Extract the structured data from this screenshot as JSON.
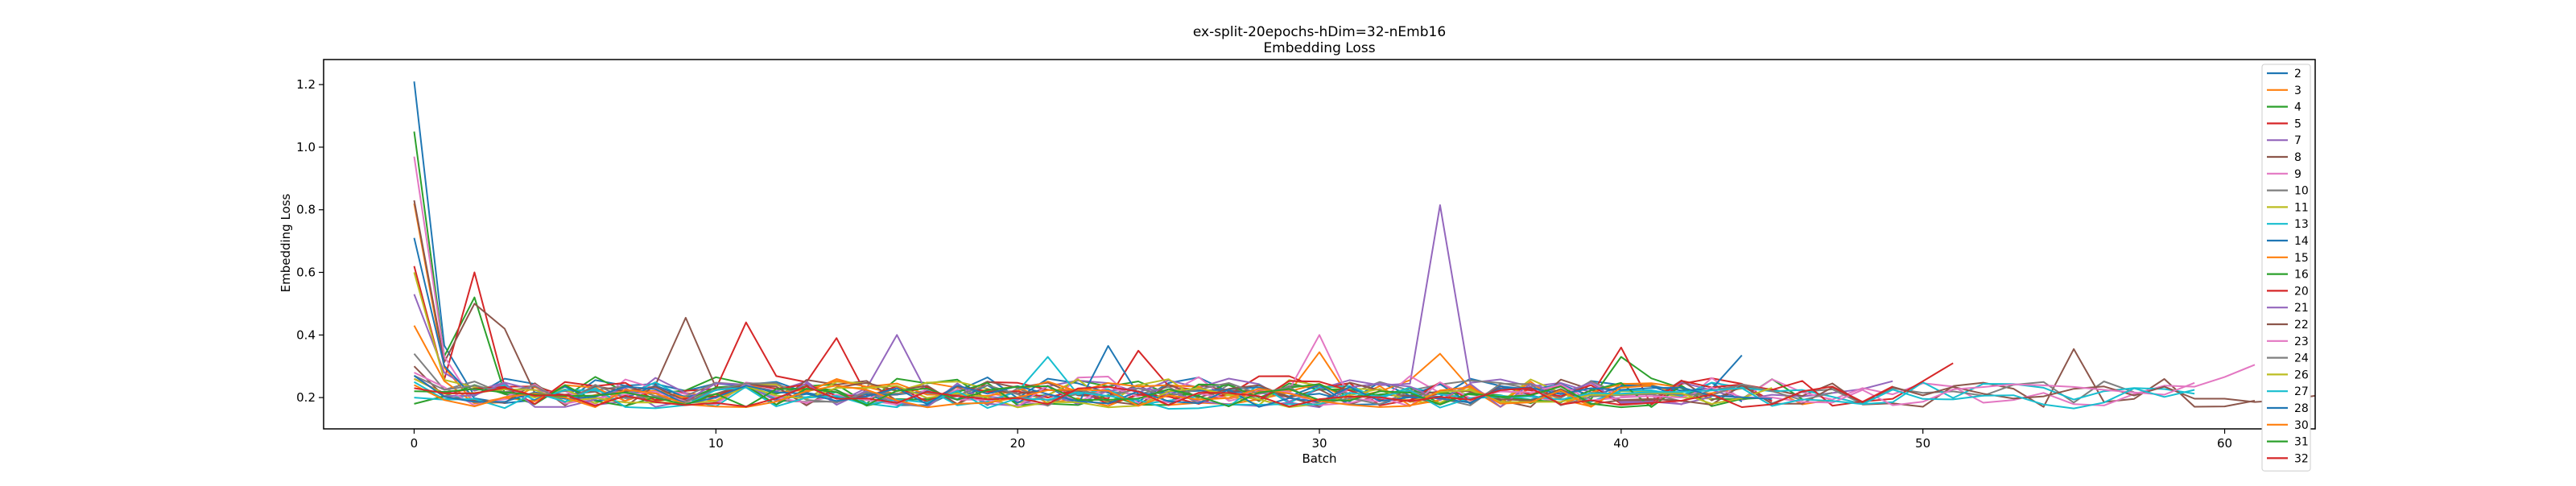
{
  "chart_data": {
    "type": "line",
    "title": "ex-split-20epochs-hDim=32-nEmb16",
    "subtitle": "Embedding Loss",
    "xlabel": "Batch",
    "ylabel": "Embedding Loss",
    "xlim": [
      -3,
      63
    ],
    "ylim": [
      0.1,
      1.28
    ],
    "xticks": [
      0,
      10,
      20,
      30,
      40,
      50,
      60
    ],
    "yticks": [
      0.2,
      0.4,
      0.6,
      0.8,
      1.0,
      1.2
    ],
    "xtick_labels": [
      "0",
      "10",
      "20",
      "30",
      "40",
      "50",
      "60"
    ],
    "ytick_labels": [
      "0.2",
      "0.4",
      "0.6",
      "0.8",
      "1.0",
      "1.2"
    ],
    "grid": false,
    "legend_position": "right",
    "series": [
      {
        "name": "2",
        "color": "#1f77b4",
        "length": 45,
        "start": 1.21,
        "base": 0.215,
        "amp": 0.045,
        "seed": 1
      },
      {
        "name": "3",
        "color": "#ff7f0e",
        "length": 48,
        "start": 0.82,
        "base": 0.21,
        "amp": 0.045,
        "seed": 2,
        "spikes": [
          [
            30,
            0.345
          ],
          [
            34,
            0.34
          ]
        ]
      },
      {
        "name": "4",
        "color": "#2ca02c",
        "length": 47,
        "start": 1.05,
        "base": 0.22,
        "amp": 0.045,
        "seed": 3,
        "spikes": [
          [
            2,
            0.52
          ],
          [
            40,
            0.33
          ]
        ]
      },
      {
        "name": "5",
        "color": "#d62728",
        "length": 46,
        "start": 0.62,
        "base": 0.22,
        "amp": 0.05,
        "seed": 4,
        "spikes": [
          [
            2,
            0.6
          ],
          [
            11,
            0.44
          ],
          [
            14,
            0.39
          ],
          [
            24,
            0.35
          ],
          [
            40,
            0.36
          ]
        ]
      },
      {
        "name": "7",
        "color": "#9467bd",
        "length": 50,
        "start": 0.53,
        "base": 0.215,
        "amp": 0.045,
        "seed": 5,
        "spikes": [
          [
            16,
            0.4
          ],
          [
            34,
            0.815
          ]
        ]
      },
      {
        "name": "8",
        "color": "#8c564b",
        "length": 62,
        "start": 0.83,
        "base": 0.21,
        "amp": 0.045,
        "seed": 6,
        "spikes": [
          [
            2,
            0.5
          ],
          [
            3,
            0.42
          ],
          [
            9,
            0.455
          ],
          [
            55,
            0.355
          ]
        ]
      },
      {
        "name": "9",
        "color": "#e377c2",
        "length": 62,
        "start": 0.97,
        "base": 0.215,
        "amp": 0.05,
        "seed": 7,
        "spikes": [
          [
            30,
            0.4
          ],
          [
            61,
            0.305
          ]
        ]
      },
      {
        "name": "10",
        "color": "#7f7f7f",
        "length": 58,
        "start": 0.34,
        "base": 0.21,
        "amp": 0.045,
        "seed": 8
      },
      {
        "name": "11",
        "color": "#bcbd22",
        "length": 44,
        "start": 0.6,
        "base": 0.21,
        "amp": 0.045,
        "seed": 9
      },
      {
        "name": "13",
        "color": "#17becf",
        "length": 60,
        "start": 0.25,
        "base": 0.205,
        "amp": 0.04,
        "seed": 10,
        "spikes": [
          [
            21,
            0.33
          ]
        ]
      },
      {
        "name": "14",
        "color": "#1f77b4",
        "length": 45,
        "start": 0.71,
        "base": 0.21,
        "amp": 0.04,
        "seed": 11,
        "spikes": [
          [
            23,
            0.365
          ],
          [
            44,
            0.335
          ]
        ]
      },
      {
        "name": "15",
        "color": "#ff7f0e",
        "length": 44,
        "start": 0.43,
        "base": 0.21,
        "amp": 0.04,
        "seed": 12
      },
      {
        "name": "16",
        "color": "#2ca02c",
        "length": 46,
        "start": 0.18,
        "base": 0.205,
        "amp": 0.04,
        "seed": 13
      },
      {
        "name": "20",
        "color": "#d62728",
        "length": 52,
        "start": 0.26,
        "base": 0.21,
        "amp": 0.04,
        "seed": 14,
        "spikes": [
          [
            51,
            0.31
          ]
        ]
      },
      {
        "name": "21",
        "color": "#9467bd",
        "length": 44,
        "start": 0.27,
        "base": 0.205,
        "amp": 0.04,
        "seed": 15
      },
      {
        "name": "22",
        "color": "#8c564b",
        "length": 64,
        "start": 0.3,
        "base": 0.205,
        "amp": 0.04,
        "seed": 16
      },
      {
        "name": "23",
        "color": "#e377c2",
        "length": 60,
        "start": 0.28,
        "base": 0.205,
        "amp": 0.04,
        "seed": 17
      },
      {
        "name": "24",
        "color": "#7f7f7f",
        "length": 48,
        "start": 0.27,
        "base": 0.205,
        "amp": 0.04,
        "seed": 18
      },
      {
        "name": "26",
        "color": "#bcbd22",
        "length": 46,
        "start": 0.26,
        "base": 0.2,
        "amp": 0.035,
        "seed": 19
      },
      {
        "name": "27",
        "color": "#17becf",
        "length": 60,
        "start": 0.2,
        "base": 0.195,
        "amp": 0.035,
        "seed": 20
      },
      {
        "name": "28",
        "color": "#1f77b4",
        "length": 46,
        "start": 0.27,
        "base": 0.2,
        "amp": 0.035,
        "seed": 21
      },
      {
        "name": "30",
        "color": "#ff7f0e",
        "length": 42,
        "start": 0.24,
        "base": 0.2,
        "amp": 0.035,
        "seed": 22
      },
      {
        "name": "31",
        "color": "#2ca02c",
        "length": 42,
        "start": 0.22,
        "base": 0.2,
        "amp": 0.035,
        "seed": 23
      },
      {
        "name": "32",
        "color": "#d62728",
        "length": 50,
        "start": 0.23,
        "base": 0.2,
        "amp": 0.035,
        "seed": 24
      }
    ]
  }
}
